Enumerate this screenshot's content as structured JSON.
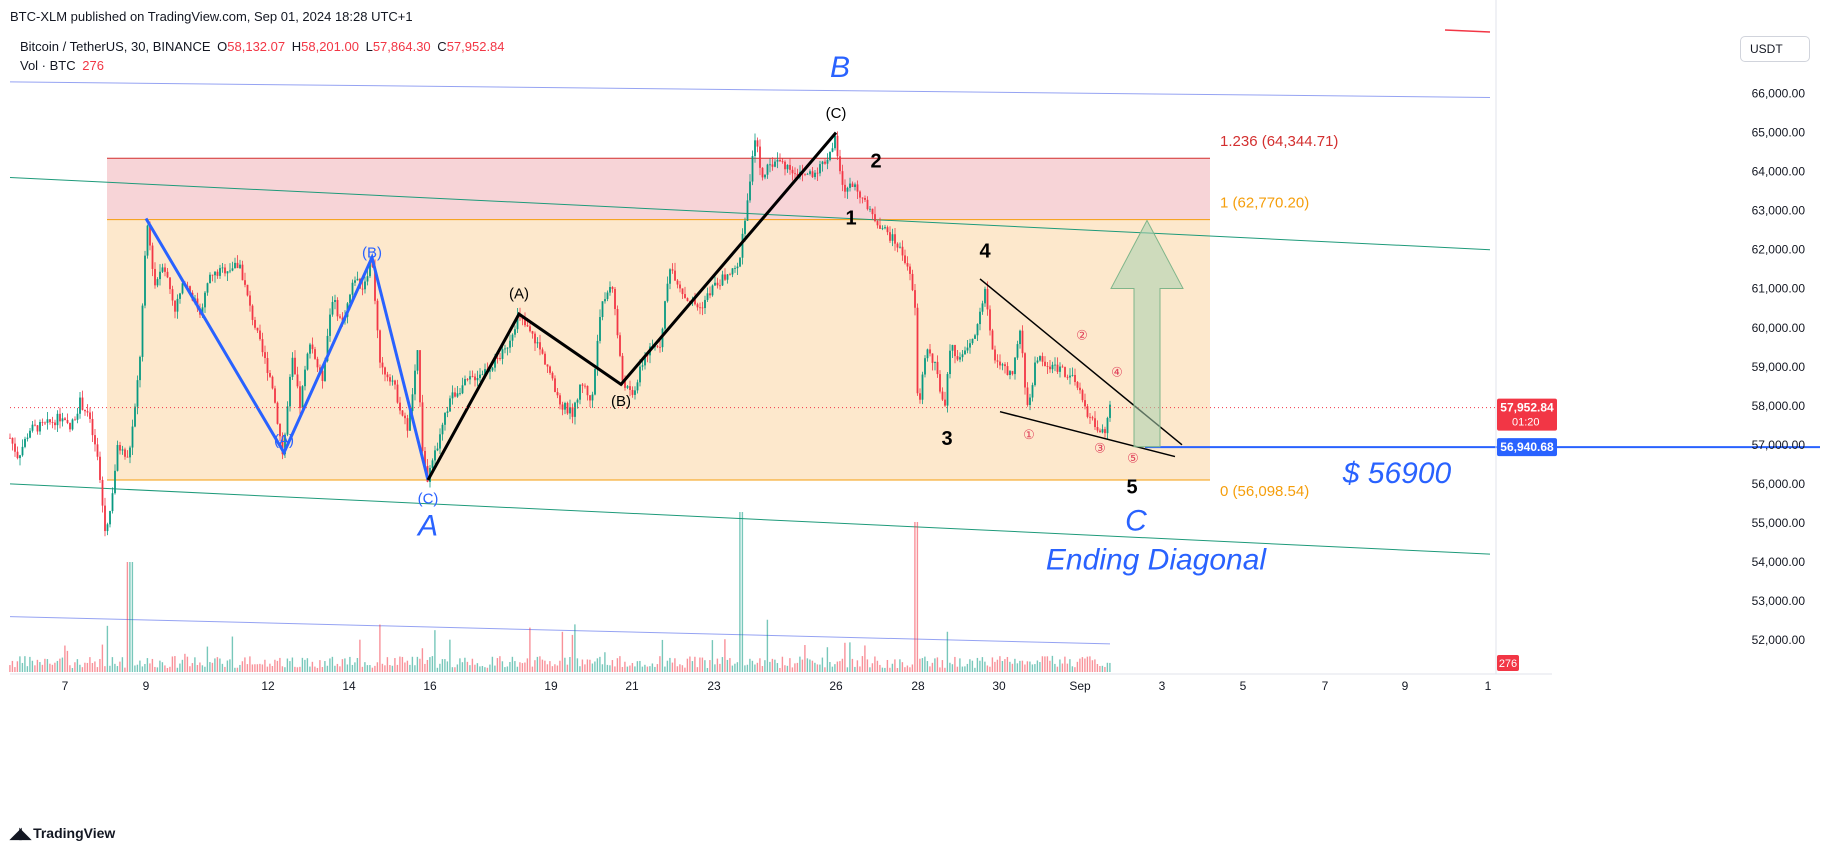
{
  "header": {
    "publisher": "BTC-XLM published on TradingView.com, Sep 01, 2024 18:28 UTC+1",
    "symbol": "Bitcoin / TetherUS, 30, BINANCE",
    "ohlc": {
      "o_label": "O",
      "o": "58,132.07",
      "h_label": "H",
      "h": "58,201.00",
      "l_label": "L",
      "l": "57,864.30",
      "c_label": "C",
      "c": "57,952.84"
    },
    "vol_label": "Vol · BTC",
    "vol_value": "276"
  },
  "currency_button": "USDT",
  "footer_logo": "TradingView",
  "colors": {
    "up": "#089981",
    "down": "#f23645",
    "blue_wave": "#2962ff",
    "green_channel": "#1e9a7a",
    "blue_channel": "#7b8cf0",
    "fib_red_zone": "#f7d4d7",
    "fib_orange_zone": "#fde8cc",
    "fib_red": "#d32f2f",
    "fib_orange": "#f59e0b",
    "target_line": "#2962ff",
    "arrow": "#a8cfae"
  },
  "chart_data": {
    "type": "candlestick",
    "y_axis": {
      "ticks": [
        "52,000.00",
        "53,000.00",
        "54,000.00",
        "55,000.00",
        "56,000.00",
        "57,000.00",
        "58,000.00",
        "59,000.00",
        "60,000.00",
        "61,000.00",
        "62,000.00",
        "63,000.00",
        "64,000.00",
        "65,000.00",
        "66,000.00"
      ],
      "ylim": [
        51200,
        67200
      ]
    },
    "x_axis": {
      "tick_labels": [
        "7",
        "9",
        "12",
        "14",
        "16",
        "19",
        "21",
        "23",
        "26",
        "28",
        "30",
        "Sep",
        "3",
        "5",
        "7",
        "9",
        "1"
      ]
    },
    "price_badges": [
      {
        "id": "last-price",
        "value": "57,952.84",
        "sub": "01:20",
        "price": 57952.84,
        "color": "#f23645"
      },
      {
        "id": "target-price",
        "value": "56,940.68",
        "price": 56940.68,
        "color": "#2962ff"
      }
    ],
    "volume_badge": {
      "value": "276",
      "color": "#f23645"
    },
    "fib_levels": [
      {
        "label": "1.236 (64,344.71)",
        "price": 64344.71,
        "color": "#d32f2f"
      },
      {
        "label": "1 (62,770.20)",
        "price": 62770.2,
        "color": "#f59e0b"
      },
      {
        "label": "0 (56,098.54)",
        "price": 56098.54,
        "color": "#f59e0b"
      }
    ],
    "price_path": [
      [
        0,
        56400
      ],
      [
        8,
        57300
      ],
      [
        18,
        56700
      ],
      [
        30,
        57400
      ],
      [
        45,
        57500
      ],
      [
        60,
        57700
      ],
      [
        70,
        57400
      ],
      [
        80,
        58100
      ],
      [
        88,
        57800
      ],
      [
        98,
        56600
      ],
      [
        105,
        54800
      ],
      [
        110,
        55300
      ],
      [
        118,
        57000
      ],
      [
        128,
        56600
      ],
      [
        135,
        57900
      ],
      [
        140,
        59300
      ],
      [
        147,
        62700
      ],
      [
        155,
        61100
      ],
      [
        163,
        61700
      ],
      [
        175,
        60500
      ],
      [
        185,
        61200
      ],
      [
        200,
        60400
      ],
      [
        210,
        61300
      ],
      [
        225,
        61500
      ],
      [
        240,
        61600
      ],
      [
        250,
        60500
      ],
      [
        262,
        59400
      ],
      [
        272,
        58600
      ],
      [
        283,
        56700
      ],
      [
        292,
        59200
      ],
      [
        300,
        58000
      ],
      [
        310,
        59700
      ],
      [
        322,
        58600
      ],
      [
        332,
        60800
      ],
      [
        342,
        60100
      ],
      [
        355,
        61300
      ],
      [
        362,
        61000
      ],
      [
        372,
        61800
      ],
      [
        380,
        59000
      ],
      [
        392,
        58700
      ],
      [
        402,
        57800
      ],
      [
        408,
        57400
      ],
      [
        418,
        59400
      ],
      [
        422,
        57000
      ],
      [
        428,
        56100
      ],
      [
        440,
        57200
      ],
      [
        450,
        58200
      ],
      [
        462,
        58500
      ],
      [
        472,
        58700
      ],
      [
        490,
        59000
      ],
      [
        505,
        59400
      ],
      [
        518,
        60300
      ],
      [
        535,
        59700
      ],
      [
        548,
        59000
      ],
      [
        558,
        58100
      ],
      [
        572,
        57800
      ],
      [
        582,
        58600
      ],
      [
        592,
        58100
      ],
      [
        600,
        60400
      ],
      [
        612,
        61200
      ],
      [
        622,
        58700
      ],
      [
        632,
        58200
      ],
      [
        645,
        59300
      ],
      [
        660,
        59600
      ],
      [
        670,
        61600
      ],
      [
        685,
        60800
      ],
      [
        700,
        60500
      ],
      [
        712,
        61000
      ],
      [
        725,
        61300
      ],
      [
        738,
        61500
      ],
      [
        744,
        62700
      ],
      [
        750,
        63700
      ],
      [
        755,
        64900
      ],
      [
        762,
        63900
      ],
      [
        775,
        64300
      ],
      [
        790,
        64100
      ],
      [
        800,
        63900
      ],
      [
        815,
        64000
      ],
      [
        826,
        64300
      ],
      [
        835,
        64800
      ],
      [
        843,
        63500
      ],
      [
        855,
        63700
      ],
      [
        868,
        63000
      ],
      [
        885,
        62500
      ],
      [
        898,
        62100
      ],
      [
        908,
        61600
      ],
      [
        915,
        60500
      ],
      [
        918,
        57800
      ],
      [
        926,
        59500
      ],
      [
        935,
        59000
      ],
      [
        945,
        57900
      ],
      [
        950,
        59500
      ],
      [
        962,
        59200
      ],
      [
        975,
        59800
      ],
      [
        985,
        61000
      ],
      [
        992,
        59400
      ],
      [
        1002,
        59000
      ],
      [
        1012,
        58700
      ],
      [
        1020,
        59900
      ],
      [
        1028,
        57800
      ],
      [
        1036,
        59300
      ],
      [
        1046,
        59000
      ],
      [
        1060,
        59000
      ],
      [
        1075,
        58600
      ],
      [
        1086,
        57900
      ],
      [
        1095,
        57500
      ],
      [
        1100,
        57400
      ],
      [
        1105,
        57200
      ],
      [
        1110,
        57950
      ]
    ],
    "annotations": {
      "wave_labels": [
        {
          "text": "B",
          "x": 840,
          "price": 66420,
          "color": "#2962ff",
          "size": 30
        },
        {
          "text": "A",
          "x": 428,
          "price": 54680,
          "color": "#2962ff",
          "size": 30
        },
        {
          "text": "C",
          "x": 1136,
          "price": 54800,
          "color": "#2962ff",
          "size": 30
        },
        {
          "text": "Ending Diagonal",
          "x": 1156,
          "price": 53800,
          "color": "#2962ff",
          "size": 30
        },
        {
          "text": "$ 56900",
          "x": 1397,
          "price": 56020,
          "color": "#2962ff",
          "size": 30
        },
        {
          "text": "(B)",
          "x": 372,
          "price": 61800,
          "color": "#2962ff",
          "size": 15
        },
        {
          "text": "(A)",
          "x": 284,
          "price": 57000,
          "color": "#2962ff",
          "size": 15
        },
        {
          "text": "(C)",
          "x": 428,
          "price": 55500,
          "color": "#2962ff",
          "size": 15
        },
        {
          "text": "(A)",
          "x": 519,
          "price": 60750,
          "color": "#000000",
          "size": 15
        },
        {
          "text": "(B)",
          "x": 621,
          "price": 58000,
          "color": "#000000",
          "size": 15
        },
        {
          "text": "(C)",
          "x": 836,
          "price": 65380,
          "color": "#000000",
          "size": 15
        },
        {
          "text": "1",
          "x": 851,
          "price": 62650,
          "color": "#000000",
          "size": 20
        },
        {
          "text": "2",
          "x": 876,
          "price": 64100,
          "color": "#000000",
          "size": 20
        },
        {
          "text": "3",
          "x": 947,
          "price": 57000,
          "color": "#000000",
          "size": 20
        },
        {
          "text": "4",
          "x": 985,
          "price": 61800,
          "color": "#000000",
          "size": 20
        },
        {
          "text": "5",
          "x": 1132,
          "price": 55750,
          "color": "#000000",
          "size": 20
        }
      ],
      "circled_labels": [
        {
          "text": "①",
          "x": 1029,
          "price": 57150
        },
        {
          "text": "②",
          "x": 1082,
          "price": 59700
        },
        {
          "text": "③",
          "x": 1100,
          "price": 56800
        },
        {
          "text": "④",
          "x": 1117,
          "price": 58750
        },
        {
          "text": "⑤",
          "x": 1133,
          "price": 56550
        }
      ],
      "blue_wave": [
        [
          146,
          62800
        ],
        [
          284,
          56800
        ],
        [
          372,
          61800
        ],
        [
          428,
          56100
        ]
      ],
      "black_wave": [
        [
          428,
          56100
        ],
        [
          519,
          60350
        ],
        [
          621,
          58550
        ],
        [
          836,
          65000
        ]
      ],
      "diagonal_upper": [
        [
          980,
          61250
        ],
        [
          1182,
          57000
        ]
      ],
      "diagonal_lower": [
        [
          1000,
          57850
        ],
        [
          1175,
          56700
        ]
      ],
      "target_line": {
        "from_x": 1145,
        "price": 56940.68
      },
      "arrow": {
        "x": 1147,
        "base_price": 56950,
        "tip_price": 62750
      },
      "green_channel": [
        [
          [
            10,
            63850
          ],
          [
            1490,
            62000
          ]
        ],
        [
          [
            10,
            56000
          ],
          [
            1490,
            54200
          ]
        ]
      ],
      "blue_channel": [
        [
          [
            10,
            66300
          ],
          [
            1490,
            65900
          ]
        ],
        [
          [
            10,
            52600
          ],
          [
            1110,
            51900
          ]
        ]
      ],
      "fib_box": {
        "from_x": 107,
        "to_x": 1210
      }
    }
  }
}
